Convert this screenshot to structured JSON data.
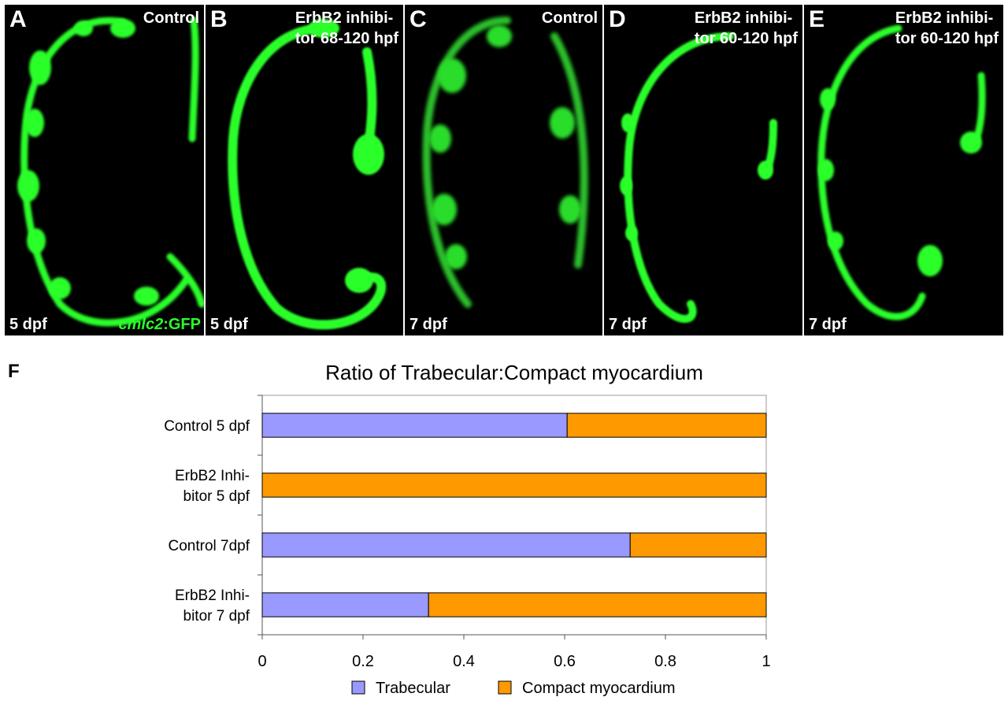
{
  "panels": [
    {
      "label": "A",
      "title_lines": [
        "Control"
      ],
      "stage": "5 dpf",
      "marker_italic": "cmlc2",
      "marker_rest": ":GFP"
    },
    {
      "label": "B",
      "title_lines": [
        "ErbB2 inhibi-",
        "tor 68-120 hpf"
      ],
      "stage": "5 dpf"
    },
    {
      "label": "C",
      "title_lines": [
        "Control"
      ],
      "stage": "7 dpf"
    },
    {
      "label": "D",
      "title_lines": [
        "ErbB2 inhibi-",
        "tor 60-120 hpf"
      ],
      "stage": "7 dpf"
    },
    {
      "label": "E",
      "title_lines": [
        "ErbB2 inhibi-",
        "tor 60-120 hpf"
      ],
      "stage": "7 dpf"
    }
  ],
  "colors": {
    "fluorescence": "#2bff2b",
    "trabecular": "#9999ff",
    "compact": "#ff9900"
  },
  "figure_f_label": "F",
  "chart_data": {
    "type": "bar",
    "orientation": "horizontal",
    "stacked": true,
    "title": "Ratio of Trabecular:Compact myocardium",
    "categories": [
      [
        "Control 5 dpf"
      ],
      [
        "ErbB2 Inhi-",
        "bitor 5 dpf"
      ],
      [
        "Control 7dpf"
      ],
      [
        "ErbB2 Inhi-",
        "bitor 7 dpf"
      ]
    ],
    "series": [
      {
        "name": "Trabecular",
        "color": "#9999ff",
        "values": [
          0.605,
          0.0,
          0.73,
          0.33
        ]
      },
      {
        "name": "Compact myocardium",
        "color": "#ff9900",
        "values": [
          0.395,
          1.0,
          0.27,
          0.67
        ]
      }
    ],
    "xlim": [
      0,
      1
    ],
    "xticks": [
      "0",
      "0.2",
      "0.4",
      "0.6",
      "0.8",
      "1"
    ],
    "legend_position": "bottom",
    "grid": false
  }
}
